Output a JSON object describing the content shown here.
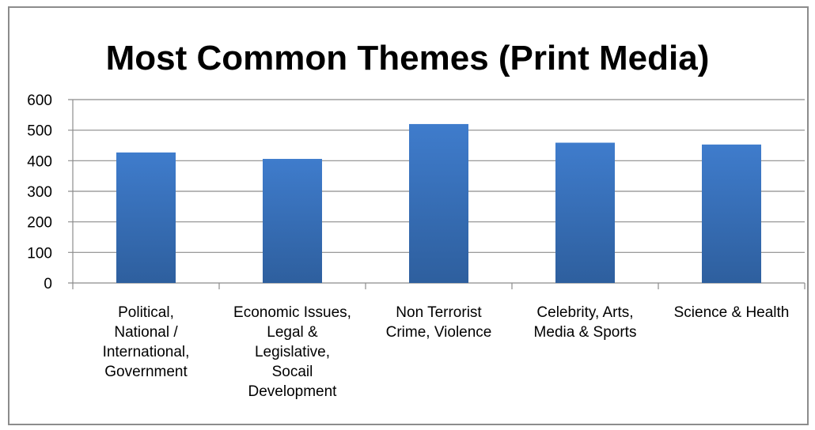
{
  "chart_data": {
    "type": "bar",
    "title": "Most Common Themes (Print Media)",
    "categories": [
      [
        "Political,",
        "National /",
        "International,",
        "Government"
      ],
      [
        "Economic Issues,",
        "Legal &",
        "Legislative,",
        "Socail",
        "Development"
      ],
      [
        "Non Terrorist",
        "Crime, Violence"
      ],
      [
        "Celebrity, Arts,",
        "Media & Sports"
      ],
      [
        "Science & Health"
      ]
    ],
    "values": [
      427,
      406,
      520,
      459,
      453
    ],
    "ylim": [
      0,
      600
    ],
    "yticks": [
      0,
      100,
      200,
      300,
      400,
      500,
      600
    ],
    "grid": true,
    "legend": "none",
    "bar_color": "#3f7ccc",
    "bar_color_dark": "#2e5f9e",
    "grid_color": "#8c8c8c"
  }
}
